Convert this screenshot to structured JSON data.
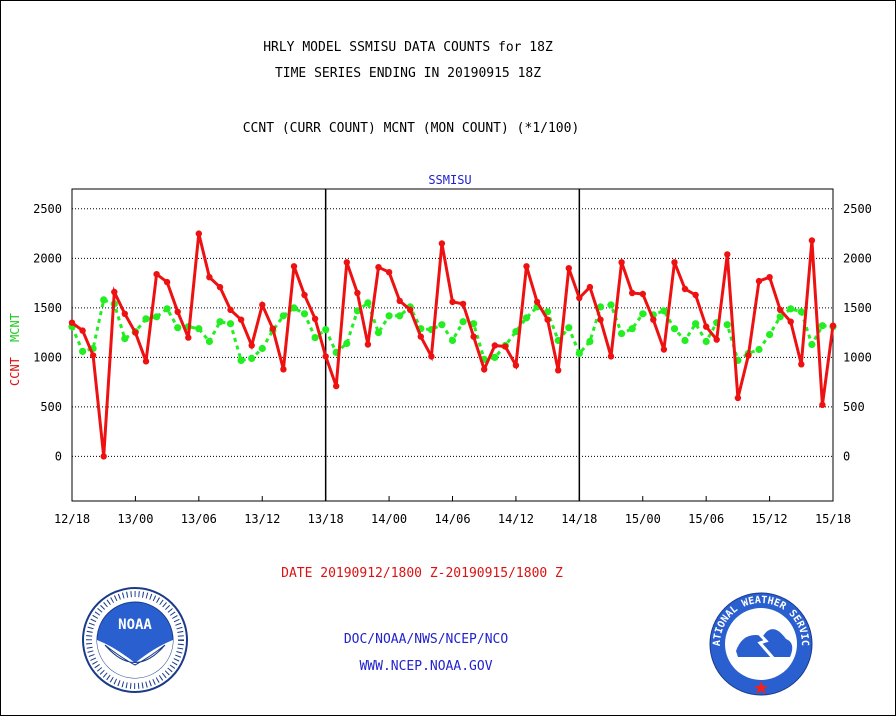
{
  "header": {
    "title_line1": "HRLY MODEL SSMISU DATA COUNTS for 18Z",
    "title_line2": "TIME SERIES ENDING IN 20190915 18Z",
    "subtitle": "CCNT (CURR COUNT) MCNT (MON COUNT) (*1/100)"
  },
  "footer": {
    "date_range": "DATE 20190912/1800 Z-20190915/1800 Z",
    "org": "DOC/NOAA/NWS/NCEP/NCO",
    "url": "WWW.NCEP.NOAA.GOV",
    "noaa_logo_text": "NOAA",
    "nws_logo_text": "NATIONAL WEATHER SERVICE"
  },
  "colors": {
    "ccnt": "#ee1111",
    "mcnt": "#22ee22",
    "text_blue": "#2222cc",
    "text_red": "#dd1111"
  },
  "chart_data": {
    "type": "line",
    "title": "SSMISU",
    "ylabel_left_1": "CCNT",
    "ylabel_left_2": "MCNT",
    "ylim": [
      -450,
      2700
    ],
    "yticks": [
      0,
      500,
      1000,
      1500,
      2000,
      2500
    ],
    "x_tick_labels": [
      "12/18",
      "13/00",
      "13/06",
      "13/12",
      "13/18",
      "14/00",
      "14/06",
      "14/12",
      "14/18",
      "15/00",
      "15/06",
      "15/12",
      "15/18"
    ],
    "x_hours_range": [
      0,
      72
    ],
    "grid": "horizontal dotted",
    "series": [
      {
        "name": "CCNT",
        "x": [
          0,
          1,
          2,
          3,
          4,
          5,
          6,
          7,
          8,
          9,
          10,
          11,
          12,
          13,
          14,
          15,
          16,
          17,
          18,
          19,
          20,
          21,
          22,
          23,
          24,
          25,
          26,
          27,
          28,
          29,
          30,
          31,
          32,
          33,
          34,
          35,
          36,
          37,
          38,
          39,
          40,
          41,
          42,
          43,
          44,
          45,
          46,
          47,
          48,
          49,
          50,
          51,
          52,
          53,
          54,
          55,
          56,
          57,
          58,
          59,
          60,
          61,
          62,
          63,
          64,
          65,
          66,
          67,
          68,
          69,
          70,
          71,
          72
        ],
        "values": [
          1350,
          1270,
          1020,
          0,
          1660,
          1440,
          1250,
          960,
          1840,
          1760,
          1460,
          1200,
          2250,
          1810,
          1710,
          1480,
          1380,
          1120,
          1530,
          1290,
          880,
          1920,
          1630,
          1390,
          1010,
          710,
          1960,
          1650,
          1130,
          1910,
          1860,
          1570,
          1480,
          1210,
          1010,
          2150,
          1560,
          1540,
          1210,
          880,
          1120,
          1110,
          920,
          1920,
          1560,
          1380,
          870,
          1900,
          1600,
          1710,
          1380,
          1010,
          1960,
          1650,
          1640,
          1380,
          1080,
          1960,
          1690,
          1630,
          1310,
          1180,
          2040,
          590,
          1020,
          1770,
          1810,
          1480,
          1360,
          930,
          2180,
          520,
          1320
        ]
      },
      {
        "name": "MCNT",
        "x": [
          0,
          1,
          2,
          3,
          4,
          5,
          6,
          7,
          8,
          9,
          10,
          11,
          12,
          13,
          14,
          15,
          16,
          17,
          18,
          19,
          20,
          21,
          22,
          23,
          24,
          25,
          26,
          27,
          28,
          29,
          30,
          31,
          32,
          33,
          34,
          35,
          36,
          37,
          38,
          39,
          40,
          41,
          42,
          43,
          44,
          45,
          46,
          47,
          48,
          49,
          50,
          51,
          52,
          53,
          54,
          55,
          56,
          57,
          58,
          59,
          60,
          61,
          62,
          63,
          64,
          65,
          66,
          67,
          68,
          69,
          70,
          71,
          72
        ],
        "values": [
          1310,
          1060,
          1090,
          1580,
          1540,
          1190,
          1260,
          1390,
          1410,
          1490,
          1300,
          1310,
          1290,
          1160,
          1360,
          1340,
          970,
          990,
          1090,
          1270,
          1420,
          1500,
          1440,
          1200,
          1280,
          1050,
          1140,
          1470,
          1550,
          1250,
          1420,
          1420,
          1510,
          1290,
          1280,
          1330,
          1170,
          1360,
          1340,
          980,
          1000,
          1120,
          1260,
          1400,
          1510,
          1460,
          1170,
          1300,
          1040,
          1160,
          1510,
          1530,
          1240,
          1290,
          1440,
          1430,
          1470,
          1290,
          1170,
          1340,
          1160,
          1350,
          1330,
          970,
          1040,
          1080,
          1230,
          1410,
          1490,
          1460,
          1130,
          1320,
          1310
        ]
      }
    ]
  }
}
